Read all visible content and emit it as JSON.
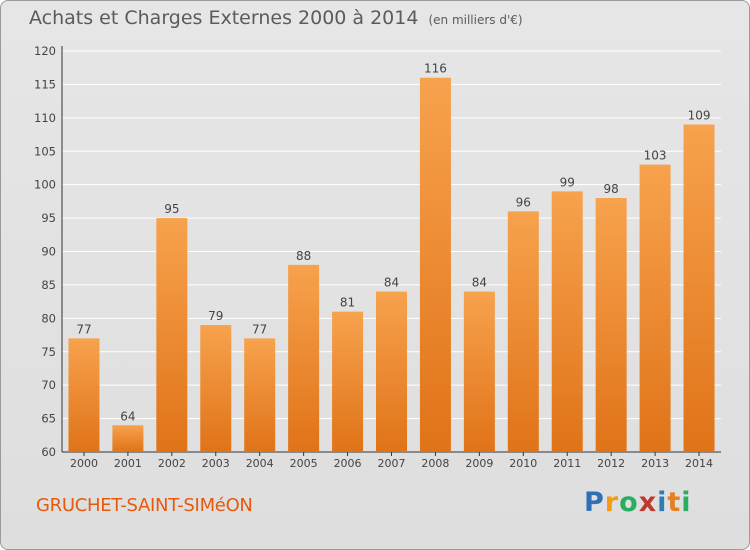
{
  "title": "Achats et Charges Externes 2000 à 2014",
  "unit": "(en milliers d'€)",
  "town": "GRUCHET-SAINT-SIMéON",
  "logo": {
    "text": "Proxiti",
    "letters": [
      "P",
      "r",
      "o",
      "x",
      "i",
      "t",
      "i"
    ],
    "colors": [
      "#2f6fb7",
      "#f39c12",
      "#27ae60",
      "#c0392b",
      "#2980b9",
      "#e67e22",
      "#27ae60"
    ]
  },
  "colors": {
    "bar_light": "#f7a24d",
    "bar_dark": "#e07318",
    "grid": "#ffffff",
    "text": "#444444"
  },
  "chart_data": {
    "type": "bar",
    "categories": [
      "2000",
      "2001",
      "2002",
      "2003",
      "2004",
      "2005",
      "2006",
      "2007",
      "2008",
      "2009",
      "2010",
      "2011",
      "2012",
      "2013",
      "2014"
    ],
    "values": [
      77,
      64,
      95,
      79,
      77,
      88,
      81,
      84,
      116,
      84,
      96,
      99,
      98,
      103,
      109
    ],
    "ylim": [
      60,
      120
    ],
    "yticks": [
      60,
      65,
      70,
      75,
      80,
      85,
      90,
      95,
      100,
      105,
      110,
      115,
      120
    ],
    "grid": true
  }
}
